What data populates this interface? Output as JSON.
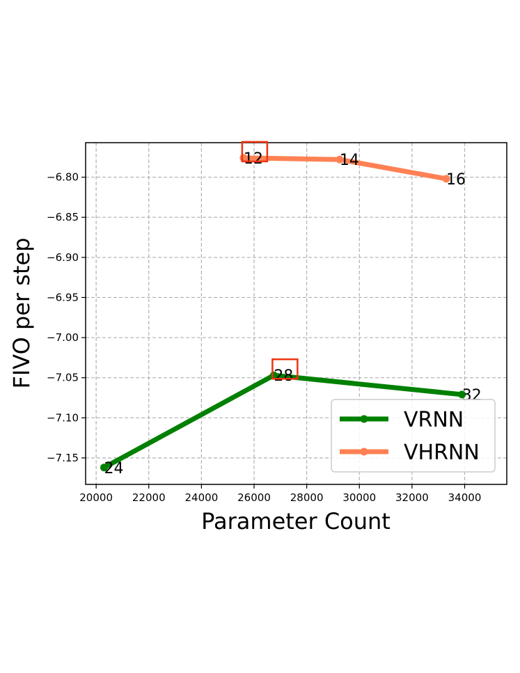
{
  "chart_data": {
    "type": "line",
    "title": "",
    "xlabel": "Parameter Count",
    "ylabel": "FIVO per step",
    "xlim": [
      19600,
      35600
    ],
    "ylim": [
      -7.183,
      -6.757
    ],
    "x_ticks": [
      20000,
      22000,
      24000,
      26000,
      28000,
      30000,
      32000,
      34000
    ],
    "x_tick_labels": [
      "20000",
      "22000",
      "24000",
      "26000",
      "28000",
      "30000",
      "32000",
      "34000"
    ],
    "y_ticks": [
      -6.8,
      -6.85,
      -6.9,
      -6.95,
      -7.0,
      -7.05,
      -7.1,
      -7.15
    ],
    "y_tick_labels": [
      "−6.80",
      "−6.85",
      "−6.90",
      "−6.95",
      "−7.00",
      "−7.05",
      "−7.10",
      "−7.15"
    ],
    "grid": true,
    "legend_position": "lower-right",
    "series": [
      {
        "name": "VRNN",
        "color": "#008000",
        "points": [
          {
            "x": 20300,
            "y": -7.162,
            "label": "24",
            "highlight": false
          },
          {
            "x": 26750,
            "y": -7.047,
            "label": "28",
            "highlight": true
          },
          {
            "x": 33900,
            "y": -7.071,
            "label": "32",
            "highlight": false
          }
        ]
      },
      {
        "name": "VHRNN",
        "color": "#ff8153",
        "points": [
          {
            "x": 25600,
            "y": -6.776,
            "label": "12",
            "highlight": true
          },
          {
            "x": 29250,
            "y": -6.778,
            "label": "14",
            "highlight": false
          },
          {
            "x": 33300,
            "y": -6.802,
            "label": "16",
            "highlight": false
          }
        ]
      }
    ],
    "highlight_color": "#ee3311"
  }
}
